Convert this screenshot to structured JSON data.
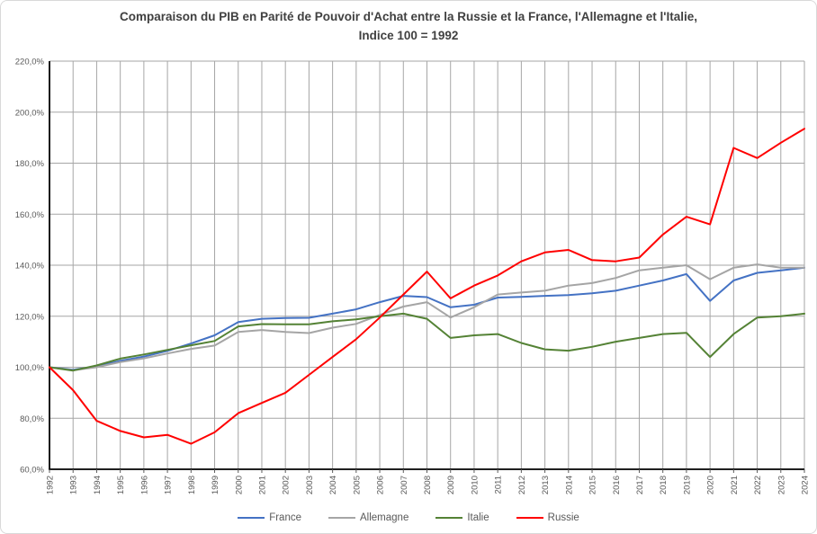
{
  "chart_data": {
    "type": "line",
    "title": "Comparaison du PIB en Parité de Pouvoir d'Achat entre la Russie et la France, l'Allemagne et l'Italie, Indice 100 = 1992",
    "title_line1": "Comparaison du PIB en Parité de Pouvoir d'Achat entre la Russie et la France, l'Allemagne et l'Italie,",
    "title_line2": "Indice 100 = 1992",
    "x": [
      1992,
      1993,
      1994,
      1995,
      1996,
      1997,
      1998,
      1999,
      2000,
      2001,
      2002,
      2003,
      2004,
      2005,
      2006,
      2007,
      2008,
      2009,
      2010,
      2011,
      2012,
      2013,
      2014,
      2015,
      2016,
      2017,
      2018,
      2019,
      2020,
      2021,
      2022,
      2023,
      2024
    ],
    "x_tick_labels": [
      "1992",
      "1993",
      "1994",
      "1995",
      "1996",
      "1997",
      "1998",
      "1999",
      "2000",
      "2001",
      "2002",
      "2003",
      "2004",
      "2005",
      "2006",
      "2007",
      "2008",
      "2009",
      "2010",
      "2011",
      "2012",
      "2013",
      "2014",
      "2015",
      "2016",
      "2017",
      "2018",
      "2019",
      "2020",
      "2021",
      "2022",
      "2023",
      "2024"
    ],
    "series": [
      {
        "name": "France",
        "color": "#4472C4",
        "values": [
          100,
          99,
          100.3,
          102.5,
          104.2,
          106.4,
          109.3,
          112.5,
          117.7,
          119,
          119.3,
          119.4,
          121,
          122.7,
          125.5,
          128,
          127.5,
          123.5,
          124.5,
          127.3,
          127.6,
          128,
          128.3,
          129,
          130,
          132,
          134,
          136.5,
          126,
          134,
          137,
          138,
          139
        ]
      },
      {
        "name": "Allemagne",
        "color": "#A5A5A5",
        "values": [
          100,
          98.8,
          100,
          102,
          103.5,
          105.4,
          107.2,
          108.5,
          113.8,
          114.6,
          113.8,
          113.4,
          115.5,
          117,
          120.5,
          123.8,
          125.5,
          119.5,
          123.5,
          128.5,
          129.3,
          130,
          132,
          133,
          135,
          138,
          139,
          140,
          134.5,
          139,
          140.3,
          139,
          139
        ]
      },
      {
        "name": "Italie",
        "color": "#548235",
        "values": [
          100,
          98.7,
          100.7,
          103.4,
          105,
          106.8,
          108.6,
          110.3,
          116,
          116.9,
          116.8,
          116.8,
          118,
          118.8,
          120,
          121,
          119,
          111.5,
          112.5,
          113,
          109.5,
          107,
          106.5,
          108,
          110,
          111.5,
          113,
          113.5,
          104,
          113,
          119.5,
          120,
          121
        ]
      },
      {
        "name": "Russie",
        "color": "#FF0000",
        "values": [
          100,
          91,
          79,
          75,
          72.5,
          73.5,
          70,
          74.5,
          82,
          86,
          90,
          97,
          104,
          111,
          119.5,
          128.5,
          137.5,
          127,
          132,
          136,
          141.5,
          145,
          146,
          142,
          141.5,
          143,
          152,
          159,
          156,
          186,
          182,
          188,
          193.5
        ]
      }
    ],
    "y_axis": {
      "min": 60,
      "max": 220,
      "step": 20,
      "format": "percent-fr",
      "tick_labels": [
        "60,0%",
        "80,0%",
        "100,0%",
        "120,0%",
        "140,0%",
        "160,0%",
        "180,0%",
        "200,0%",
        "220,0%"
      ]
    },
    "grid": {
      "horizontal_every": 20,
      "vertical_every_year": true,
      "color": "#A6A6A6"
    },
    "legend_position": "bottom",
    "axis_color": "#000000",
    "label_color": "#595959"
  }
}
